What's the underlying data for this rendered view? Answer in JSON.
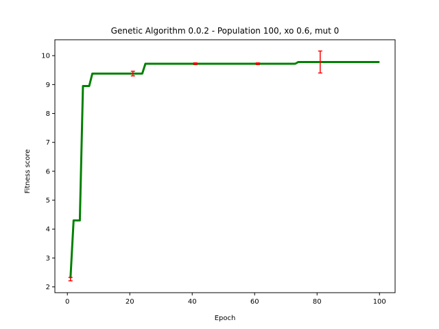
{
  "chart_data": {
    "type": "line",
    "title": "Genetic Algorithm 0.0.2 - Population 100, xo 0.6, mut 0",
    "xlabel": "Epoch",
    "ylabel": "Fitness score",
    "xlim": [
      -4,
      105
    ],
    "ylim": [
      1.8,
      10.55
    ],
    "xticks": [
      0,
      20,
      40,
      60,
      80,
      100
    ],
    "yticks": [
      2,
      3,
      4,
      5,
      6,
      7,
      8,
      9,
      10
    ],
    "grid": false,
    "series": [
      {
        "color": "#008000",
        "x": [
          1,
          2,
          3,
          4,
          5,
          6,
          7,
          8,
          9,
          10,
          20,
          24,
          25,
          26,
          40,
          60,
          72,
          73,
          74,
          80,
          90,
          100
        ],
        "y": [
          2.3,
          4.3,
          4.3,
          4.3,
          8.95,
          8.95,
          8.95,
          9.38,
          9.38,
          9.38,
          9.38,
          9.38,
          9.72,
          9.72,
          9.72,
          9.72,
          9.72,
          9.72,
          9.78,
          9.78,
          9.78,
          9.78
        ]
      }
    ],
    "error_bars": {
      "color": "#ff0000",
      "points": [
        {
          "x": 1,
          "y": 2.27,
          "err": 0.06
        },
        {
          "x": 21,
          "y": 9.38,
          "err": 0.08
        },
        {
          "x": 41,
          "y": 9.72,
          "err": 0.03
        },
        {
          "x": 61,
          "y": 9.72,
          "err": 0.03
        },
        {
          "x": 81,
          "y": 9.78,
          "err": 0.38
        }
      ]
    }
  }
}
